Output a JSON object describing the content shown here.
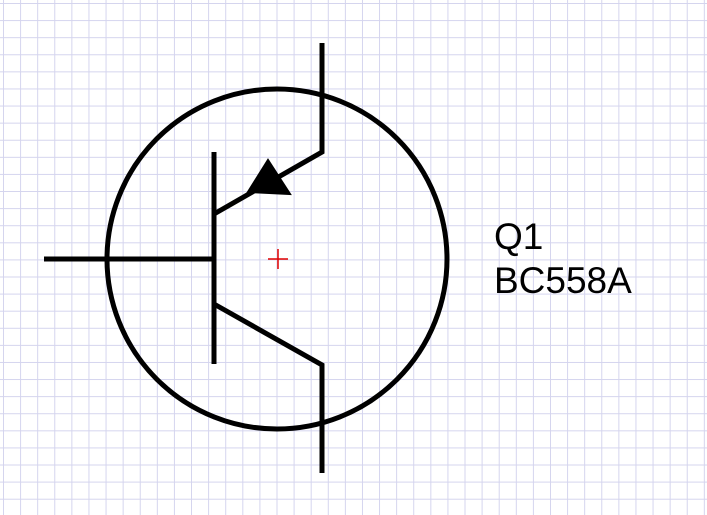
{
  "component": {
    "reference": "Q1",
    "value": "BC558A",
    "symbol_icon": "pnp-transistor-icon",
    "origin_marker_icon": "crosshair-icon"
  },
  "colors": {
    "background": "#ffffff",
    "grid": "#d4d4ee",
    "symbol_stroke": "#000000",
    "origin_marker": "#e00000"
  }
}
